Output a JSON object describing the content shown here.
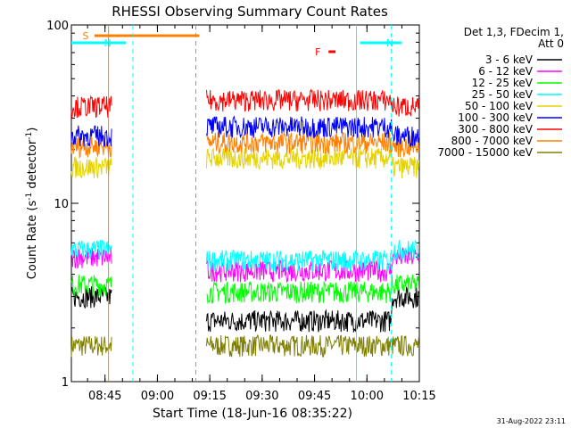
{
  "chart_data": {
    "type": "line",
    "title": "RHESSI Observing Summary Count Rates",
    "xlabel": "Start Time (18-Jun-16 08:35:22)",
    "ylabel_main": "Count Rate (s",
    "ylabel_sup1": "-1",
    "ylabel_mid": " detector",
    "ylabel_sup2": "-1",
    "ylabel_end": ")",
    "yscale": "log",
    "ylim": [
      1,
      100
    ],
    "xlim": [
      "08:35:22",
      "10:15"
    ],
    "x_ticks": [
      "08:45",
      "09:00",
      "09:15",
      "09:30",
      "09:45",
      "10:00",
      "10:15"
    ],
    "y_ticks": [
      "1",
      "10",
      "100"
    ],
    "legend_header": [
      "Det 1,3, FDecim 1,",
      "Att 0"
    ],
    "legend_position": "right",
    "series": [
      {
        "name": "3 - 6 keV",
        "color": "#000000",
        "level_day": 2.2,
        "level_night": 3.0
      },
      {
        "name": "6 - 12 keV",
        "color": "#ff00ff",
        "level_day": 4.2,
        "level_night": 5.0
      },
      {
        "name": "12 - 25 keV",
        "color": "#00ff00",
        "level_day": 3.2,
        "level_night": 3.5
      },
      {
        "name": "25 - 50 keV",
        "color": "#00ffff",
        "level_day": 4.8,
        "level_night": 5.5
      },
      {
        "name": "50 - 100 keV",
        "color": "#e6d200",
        "level_day": 18,
        "level_night": 16
      },
      {
        "name": "100 - 300 keV",
        "color": "#0000ff",
        "level_day": 27,
        "level_night": 24
      },
      {
        "name": "300 - 800 keV",
        "color": "#ff0000",
        "level_day": 38,
        "level_night": 35
      },
      {
        "name": "800 - 7000 keV",
        "color": "#ff8000",
        "level_day": 22,
        "level_night": 21
      },
      {
        "name": "7000 - 15000 keV",
        "color": "#808000",
        "level_day": 1.6,
        "level_night": 1.6
      }
    ],
    "data_gaps": [
      [
        "08:47",
        "09:14"
      ]
    ],
    "bars": [
      {
        "label": "S",
        "color": "#ff8000",
        "start": "08:42",
        "end": "09:12"
      },
      {
        "label": "N",
        "color": "#00ffff",
        "start": "08:35:22",
        "end": "08:51"
      },
      {
        "label": "N",
        "color": "#00ffff",
        "start": "09:58",
        "end": "10:10"
      },
      {
        "label": "F",
        "color": "#ff0000",
        "start": "09:49",
        "end": "09:51"
      }
    ],
    "markers": [
      {
        "time": "08:46",
        "color": "#ff8000",
        "style": "solid"
      },
      {
        "time": "08:53",
        "color": "#00ffff",
        "style": "dashed"
      },
      {
        "time": "09:11",
        "color": "#ff8000",
        "style": "dashed"
      },
      {
        "time": "09:57",
        "color": "#00ffff",
        "style": "solid"
      },
      {
        "time": "10:07",
        "color": "#00ffff",
        "style": "dashed"
      }
    ]
  },
  "footer_date": "31-Aug-2022 23:11"
}
